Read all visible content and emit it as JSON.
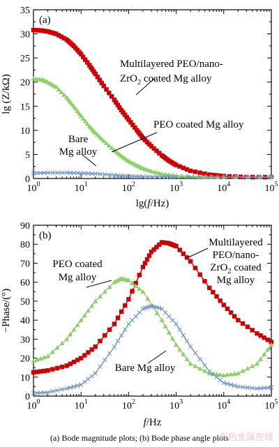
{
  "chart_data": [
    {
      "type": "line",
      "panel_label": "(a)",
      "xlabel_pre": "lg(",
      "xlabel_var": "f",
      "xlabel_post": "/Hz)",
      "ylabel": "lg (Z/kΩ)",
      "x_scale": "log",
      "xlim": [
        1,
        100000
      ],
      "ylim": [
        0,
        35
      ],
      "yticks": [
        "0",
        "5",
        "10",
        "15",
        "20",
        "25",
        "30",
        "35"
      ],
      "grid": false,
      "series": [
        {
          "name": "Multilayered PEO/nano-ZrO2 coated Mg alloy",
          "color": "#cc0000",
          "marker": "square",
          "x": [
            1,
            1.5,
            2,
            3,
            5,
            7,
            10,
            15,
            20,
            30,
            50,
            70,
            100,
            150,
            200,
            300,
            500,
            700,
            1000,
            2000,
            5000,
            10000,
            30000,
            100000
          ],
          "y": [
            30.8,
            30.7,
            30.5,
            30.0,
            28.8,
            27.5,
            25.8,
            23.5,
            21.7,
            19.2,
            16.3,
            14.2,
            12.2,
            10.0,
            8.4,
            6.7,
            4.8,
            3.7,
            2.8,
            1.6,
            0.8,
            0.5,
            0.3,
            0.3
          ]
        },
        {
          "name": "PEO coated Mg alloy",
          "color": "#8dd06a",
          "marker": "triangle",
          "x": [
            1,
            1.5,
            2,
            3,
            5,
            7,
            10,
            15,
            20,
            30,
            50,
            70,
            100,
            150,
            200,
            300,
            500,
            1000,
            3000,
            10000,
            100000
          ],
          "y": [
            20.7,
            20.5,
            20.0,
            19.0,
            16.8,
            15.0,
            13.0,
            10.8,
            9.5,
            7.8,
            5.9,
            4.7,
            3.6,
            2.7,
            2.1,
            1.5,
            1.0,
            0.6,
            0.4,
            0.3,
            0.3
          ]
        },
        {
          "name": "Bare Mg alloy",
          "color": "#6f96c8",
          "marker": "cross",
          "x": [
            1,
            2,
            5,
            10,
            20,
            50,
            100,
            200,
            500,
            1000,
            10000,
            100000
          ],
          "y": [
            1.1,
            1.2,
            1.2,
            1.1,
            1.0,
            0.7,
            0.5,
            0.4,
            0.35,
            0.3,
            0.3,
            0.3
          ]
        }
      ],
      "annotations": [
        {
          "lines": [
            "Multilayered PEO/nano-",
            "ZrO|2| coated Mg alloy"
          ]
        },
        {
          "lines": [
            "PEO coated Mg alloy"
          ]
        },
        {
          "lines": [
            "Bare",
            "Mg alloy"
          ]
        }
      ]
    },
    {
      "type": "line",
      "panel_label": "(b)",
      "xlabel_pre": "",
      "xlabel_var": "f",
      "xlabel_post": "/Hz",
      "ylabel": "−Phase/(°)",
      "x_scale": "log",
      "xlim": [
        1,
        100000
      ],
      "ylim": [
        0,
        90
      ],
      "yticks": [
        "0",
        "10",
        "20",
        "30",
        "40",
        "50",
        "60",
        "70",
        "80",
        "90"
      ],
      "grid": false,
      "series": [
        {
          "name": "Multilayered PEO/nano-ZrO2 coated Mg alloy",
          "color": "#cc0000",
          "marker": "square",
          "x": [
            1,
            2,
            5,
            10,
            20,
            50,
            100,
            200,
            300,
            500,
            700,
            1000,
            2000,
            5000,
            10000,
            20000,
            50000,
            100000
          ],
          "y": [
            12.5,
            13.5,
            16.0,
            20.0,
            26.0,
            38.0,
            51.0,
            68.0,
            76.0,
            81.0,
            80.5,
            79.0,
            71.0,
            57.0,
            48.0,
            40.0,
            33.0,
            28.5
          ]
        },
        {
          "name": "PEO coated Mg alloy",
          "color": "#8dd06a",
          "marker": "triangle",
          "x": [
            1,
            2,
            5,
            10,
            20,
            50,
            70,
            100,
            200,
            500,
            1000,
            2000,
            5000,
            10000,
            20000,
            50000,
            100000
          ],
          "y": [
            18.5,
            21.0,
            30.0,
            40.0,
            50.0,
            60.0,
            62.0,
            61.0,
            55.0,
            40.0,
            27.0,
            17.0,
            12.0,
            11.0,
            12.0,
            17.0,
            27.0
          ]
        },
        {
          "name": "Bare Mg alloy",
          "color": "#6f96c8",
          "marker": "cross",
          "x": [
            1,
            2,
            5,
            10,
            20,
            50,
            100,
            200,
            300,
            500,
            1000,
            2000,
            5000,
            10000,
            20000,
            50000,
            100000
          ],
          "y": [
            1.5,
            2.0,
            4.0,
            6.0,
            12.0,
            26.0,
            38.0,
            46.0,
            47.5,
            46.0,
            38.0,
            26.0,
            13.0,
            7.0,
            5.0,
            4.0,
            4.5
          ]
        }
      ],
      "annotations": [
        {
          "lines": [
            "Multilayered",
            "PEO/nano-",
            "ZrO|2| coated",
            "Mg alloy"
          ]
        },
        {
          "lines": [
            "PEO coated",
            "Mg alloy"
          ]
        },
        {
          "lines": [
            "Bare Mg alloy"
          ]
        }
      ]
    }
  ],
  "xticks": [
    "10^0",
    "10^1",
    "10^2",
    "10^3",
    "10^4",
    "10^5"
  ],
  "caption": "(a)  Bode  magnitude  plots; (b) Bode phase angle plots",
  "watermark": "有色金属在线"
}
